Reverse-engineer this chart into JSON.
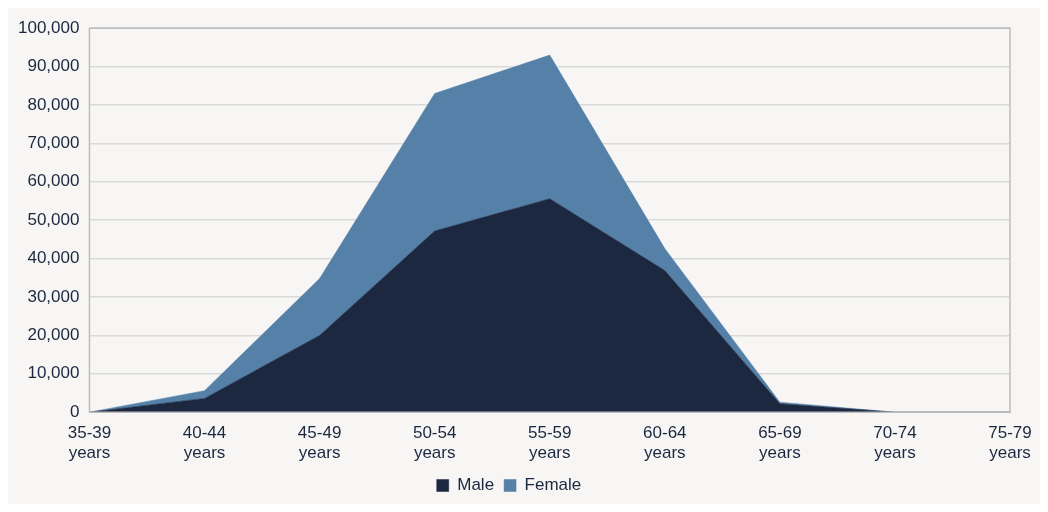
{
  "chart_data": {
    "type": "area",
    "stacked": true,
    "categories": [
      "35-39 years",
      "40-44 years",
      "45-49 years",
      "50-54 years",
      "55-59 years",
      "60-64 years",
      "65-69 years",
      "70-74 years",
      "75-79 years"
    ],
    "series": [
      {
        "name": "Male",
        "color": "#1b2840",
        "values": [
          0,
          3600,
          20000,
          47200,
          55600,
          36900,
          2200,
          0,
          0
        ]
      },
      {
        "name": "Female",
        "color": "#5580a8",
        "values": [
          0,
          2000,
          14800,
          35800,
          37400,
          5700,
          400,
          0,
          0
        ]
      }
    ],
    "ylim": [
      0,
      100000
    ],
    "yticks": [
      0,
      {
        "value": 10000,
        "label": "10,000"
      },
      {
        "value": 20000,
        "label": "20,000"
      },
      {
        "value": 30000,
        "label": "30,000"
      },
      {
        "value": 40000,
        "label": "40,000"
      },
      {
        "value": 50000,
        "label": "50,000"
      },
      {
        "value": 60000,
        "label": "60,000"
      },
      {
        "value": 70000,
        "label": "70,000"
      },
      {
        "value": 80000,
        "label": "80,000"
      },
      {
        "value": 90000,
        "label": "90,000"
      },
      {
        "value": 100000,
        "label": "100,000"
      }
    ],
    "grid": "y",
    "legend": "bottom"
  }
}
